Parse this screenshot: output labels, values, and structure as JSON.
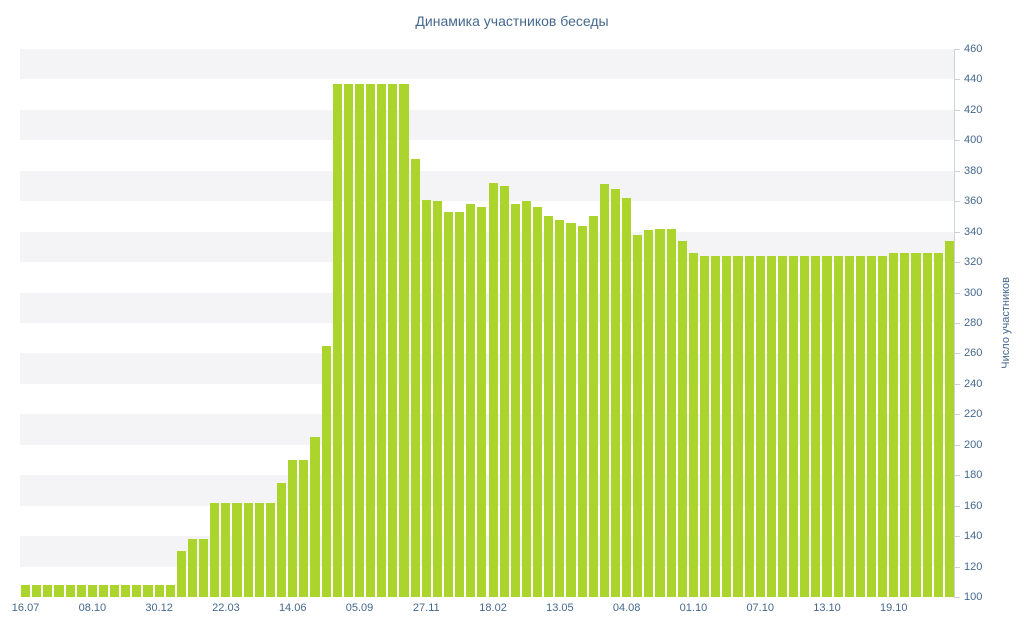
{
  "title": "Динамика участников беседы",
  "chart_data": {
    "type": "bar",
    "title": "Динамика участников беседы",
    "xlabel": "",
    "ylabel": "Число участников",
    "ylim": [
      100,
      460
    ],
    "ytick_step": 20,
    "grid": "alternating horizontal stripes",
    "legend": "none",
    "bar_color": "#abd42d",
    "stripe_color": "#f4f4f6",
    "axis_text_color": "#45688e",
    "axis_line_color": "#ccd1da",
    "x_tick_labels": [
      "16.07",
      "08.10",
      "30.12",
      "22.03",
      "14.06",
      "05.09",
      "27.11",
      "18.02",
      "13.05",
      "04.08",
      "01.10",
      "07.10",
      "13.10",
      "19.10"
    ],
    "x_tick_every": 6,
    "values": [
      108,
      108,
      108,
      108,
      108,
      108,
      108,
      108,
      108,
      108,
      108,
      108,
      108,
      108,
      130,
      138,
      138,
      162,
      162,
      162,
      162,
      162,
      162,
      175,
      190,
      190,
      205,
      265,
      437,
      437,
      437,
      437,
      437,
      437,
      437,
      388,
      361,
      360,
      353,
      353,
      358,
      356,
      372,
      370,
      358,
      360,
      356,
      350,
      348,
      346,
      344,
      350,
      371,
      368,
      362,
      338,
      341,
      342,
      342,
      334,
      326,
      324,
      324,
      324,
      324,
      324,
      324,
      324,
      324,
      324,
      324,
      324,
      324,
      324,
      324,
      324,
      324,
      324,
      326,
      326,
      326,
      326,
      326,
      334
    ]
  }
}
